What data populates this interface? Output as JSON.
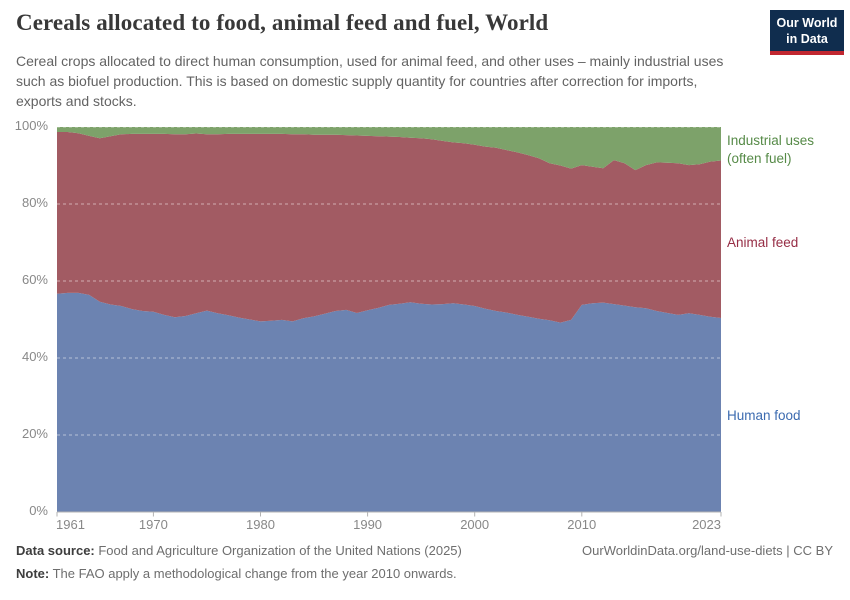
{
  "header": {
    "title": "Cereals allocated to food, animal feed and fuel, World",
    "subtitle": "Cereal crops allocated to direct human consumption, used for animal feed, and other uses – mainly industrial uses such as biofuel production. This is based on domestic supply quantity for countries after correction for imports, exports and stocks.",
    "logo_line1": "Our World",
    "logo_line2": "in Data",
    "logo_bg_color": "#102d4e",
    "logo_stripe_color": "#c12730"
  },
  "chart_data": {
    "type": "area",
    "stacked_percent": true,
    "title": "Cereals allocated to food, animal feed and fuel, World",
    "xlabel": "",
    "ylabel": "",
    "ylim": [
      0,
      100
    ],
    "xlim": [
      1961,
      2023
    ],
    "grid": "dashed horizontal at 20% steps",
    "legend_position": "right-of-plot, colored text labels",
    "x": [
      1961,
      1962,
      1963,
      1964,
      1965,
      1966,
      1967,
      1968,
      1969,
      1970,
      1971,
      1972,
      1973,
      1974,
      1975,
      1976,
      1977,
      1978,
      1979,
      1980,
      1981,
      1982,
      1983,
      1984,
      1985,
      1986,
      1987,
      1988,
      1989,
      1990,
      1991,
      1992,
      1993,
      1994,
      1995,
      1996,
      1997,
      1998,
      1999,
      2000,
      2001,
      2002,
      2003,
      2004,
      2005,
      2006,
      2007,
      2008,
      2009,
      2010,
      2011,
      2012,
      2013,
      2014,
      2015,
      2016,
      2017,
      2018,
      2019,
      2020,
      2021,
      2022,
      2023
    ],
    "series": [
      {
        "name": "Human food",
        "color": "#6c83b1",
        "label_color": "#3c6bb0",
        "values": [
          56.7,
          56.9,
          56.9,
          56.4,
          54.6,
          53.9,
          53.5,
          52.7,
          52.2,
          52.0,
          51.2,
          50.6,
          50.9,
          51.6,
          52.3,
          51.6,
          51.1,
          50.5,
          50.0,
          49.5,
          49.7,
          49.9,
          49.5,
          50.3,
          50.8,
          51.5,
          52.2,
          52.5,
          51.7,
          52.4,
          53.0,
          53.8,
          54.1,
          54.5,
          54.1,
          53.9,
          54.0,
          54.2,
          53.9,
          53.5,
          52.8,
          52.2,
          51.8,
          51.2,
          50.7,
          50.2,
          49.8,
          49.2,
          49.9,
          53.8,
          54.2,
          54.4,
          54.0,
          53.6,
          53.2,
          52.9,
          52.2,
          51.7,
          51.2,
          51.6,
          51.2,
          50.7,
          50.4
        ]
      },
      {
        "name": "Animal feed",
        "color": "#a25b63",
        "label_color": "#962d45",
        "values": [
          42.0,
          41.8,
          41.5,
          41.3,
          42.5,
          43.7,
          44.6,
          45.5,
          46.0,
          46.2,
          47.0,
          47.5,
          47.2,
          46.7,
          45.8,
          46.5,
          47.1,
          47.7,
          48.2,
          48.7,
          48.5,
          48.3,
          48.6,
          47.8,
          47.2,
          46.5,
          45.8,
          45.4,
          46.1,
          45.3,
          44.6,
          43.7,
          43.3,
          42.7,
          43.0,
          42.9,
          42.4,
          41.8,
          41.9,
          41.9,
          42.1,
          42.4,
          42.2,
          42.2,
          42.0,
          41.7,
          40.8,
          40.8,
          39.3,
          36.3,
          35.5,
          34.9,
          37.4,
          37.0,
          35.6,
          37.2,
          38.6,
          39.0,
          39.4,
          38.5,
          39.1,
          40.3,
          40.9
        ]
      },
      {
        "name": "Industrial uses (often fuel)",
        "color": "#7da26a",
        "label_color": "#568a47",
        "values": [
          1.3,
          1.3,
          1.6,
          2.3,
          2.9,
          2.4,
          1.9,
          1.8,
          1.8,
          1.8,
          1.8,
          1.9,
          1.9,
          1.7,
          1.9,
          1.9,
          1.8,
          1.8,
          1.8,
          1.8,
          1.8,
          1.8,
          1.9,
          1.9,
          2.0,
          2.0,
          2.0,
          2.1,
          2.2,
          2.3,
          2.4,
          2.5,
          2.6,
          2.8,
          2.9,
          3.2,
          3.6,
          4.0,
          4.2,
          4.6,
          5.1,
          5.4,
          6.0,
          6.6,
          7.3,
          8.1,
          9.4,
          10.0,
          10.8,
          9.9,
          10.3,
          10.7,
          8.6,
          9.4,
          11.2,
          9.9,
          9.2,
          9.3,
          9.4,
          9.9,
          9.7,
          9.0,
          8.7
        ]
      }
    ],
    "y_ticks": [
      {
        "v": 0,
        "label": "0%"
      },
      {
        "v": 20,
        "label": "20%"
      },
      {
        "v": 40,
        "label": "40%"
      },
      {
        "v": 60,
        "label": "60%"
      },
      {
        "v": 80,
        "label": "80%"
      },
      {
        "v": 100,
        "label": "100%"
      }
    ],
    "x_ticks": [
      {
        "v": 1961,
        "label": "1961"
      },
      {
        "v": 1970,
        "label": "1970"
      },
      {
        "v": 1980,
        "label": "1980"
      },
      {
        "v": 1990,
        "label": "1990"
      },
      {
        "v": 2000,
        "label": "2000"
      },
      {
        "v": 2010,
        "label": "2010"
      },
      {
        "v": 2023,
        "label": "2023"
      }
    ]
  },
  "footer": {
    "data_source_label": "Data source:",
    "data_source_text": " Food and Agriculture Organization of the United Nations (2025)",
    "note_label": "Note:",
    "note_text": " The FAO apply a methodological change from the year 2010 onwards.",
    "link_text": "OurWorldinData.org/land-use-diets | CC BY"
  }
}
